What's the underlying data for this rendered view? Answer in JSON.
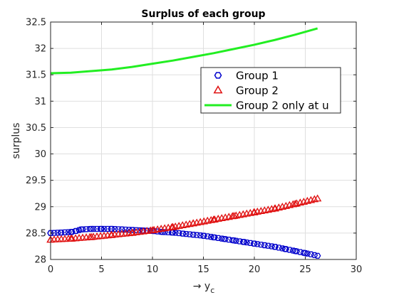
{
  "chart_data": {
    "type": "line",
    "title": "Surplus of each group",
    "xlabel": "→ y",
    "xlabel_subscript": "c",
    "ylabel": "surplus",
    "xlim": [
      0,
      30
    ],
    "ylim": [
      28,
      32.5
    ],
    "xticks": [
      "0",
      "5",
      "10",
      "15",
      "20",
      "25",
      "30"
    ],
    "yticks": [
      "28",
      "28.5",
      "29",
      "29.5",
      "30",
      "30.5",
      "31",
      "31.5",
      "32",
      "32.5"
    ],
    "grid": true,
    "legend_position": "upper-right",
    "series": [
      {
        "name": "Group 1",
        "marker": "hexagon",
        "color": "#0000cc",
        "x": [
          0,
          1,
          2,
          2.5,
          3,
          4,
          5,
          6,
          7,
          8,
          9,
          10,
          11,
          12,
          13,
          14,
          15,
          16,
          17,
          18,
          19,
          20,
          21,
          22,
          23,
          24,
          25,
          26.2
        ],
        "y": [
          28.5,
          28.51,
          28.52,
          28.54,
          28.57,
          28.58,
          28.58,
          28.58,
          28.57,
          28.56,
          28.55,
          28.54,
          28.52,
          28.51,
          28.49,
          28.47,
          28.45,
          28.42,
          28.39,
          28.36,
          28.33,
          28.3,
          28.27,
          28.24,
          28.2,
          28.16,
          28.12,
          28.07
        ]
      },
      {
        "name": "Group 2",
        "marker": "triangle",
        "color": "#e01010",
        "x": [
          0,
          2,
          4,
          6,
          8,
          10,
          12,
          14,
          16,
          18,
          20,
          22,
          24,
          26.2
        ],
        "y": [
          28.37,
          28.39,
          28.42,
          28.46,
          28.5,
          28.55,
          28.61,
          28.68,
          28.75,
          28.82,
          28.89,
          28.96,
          29.05,
          29.15
        ]
      },
      {
        "name": "Group 2 only at u",
        "marker": "none",
        "color": "#22ee22",
        "x": [
          0,
          2,
          4,
          6,
          8,
          10,
          12,
          14,
          16,
          18,
          20,
          22,
          24,
          26.2
        ],
        "y": [
          31.53,
          31.54,
          31.57,
          31.6,
          31.65,
          31.71,
          31.77,
          31.84,
          31.91,
          31.99,
          32.07,
          32.16,
          32.26,
          32.38
        ]
      }
    ]
  }
}
